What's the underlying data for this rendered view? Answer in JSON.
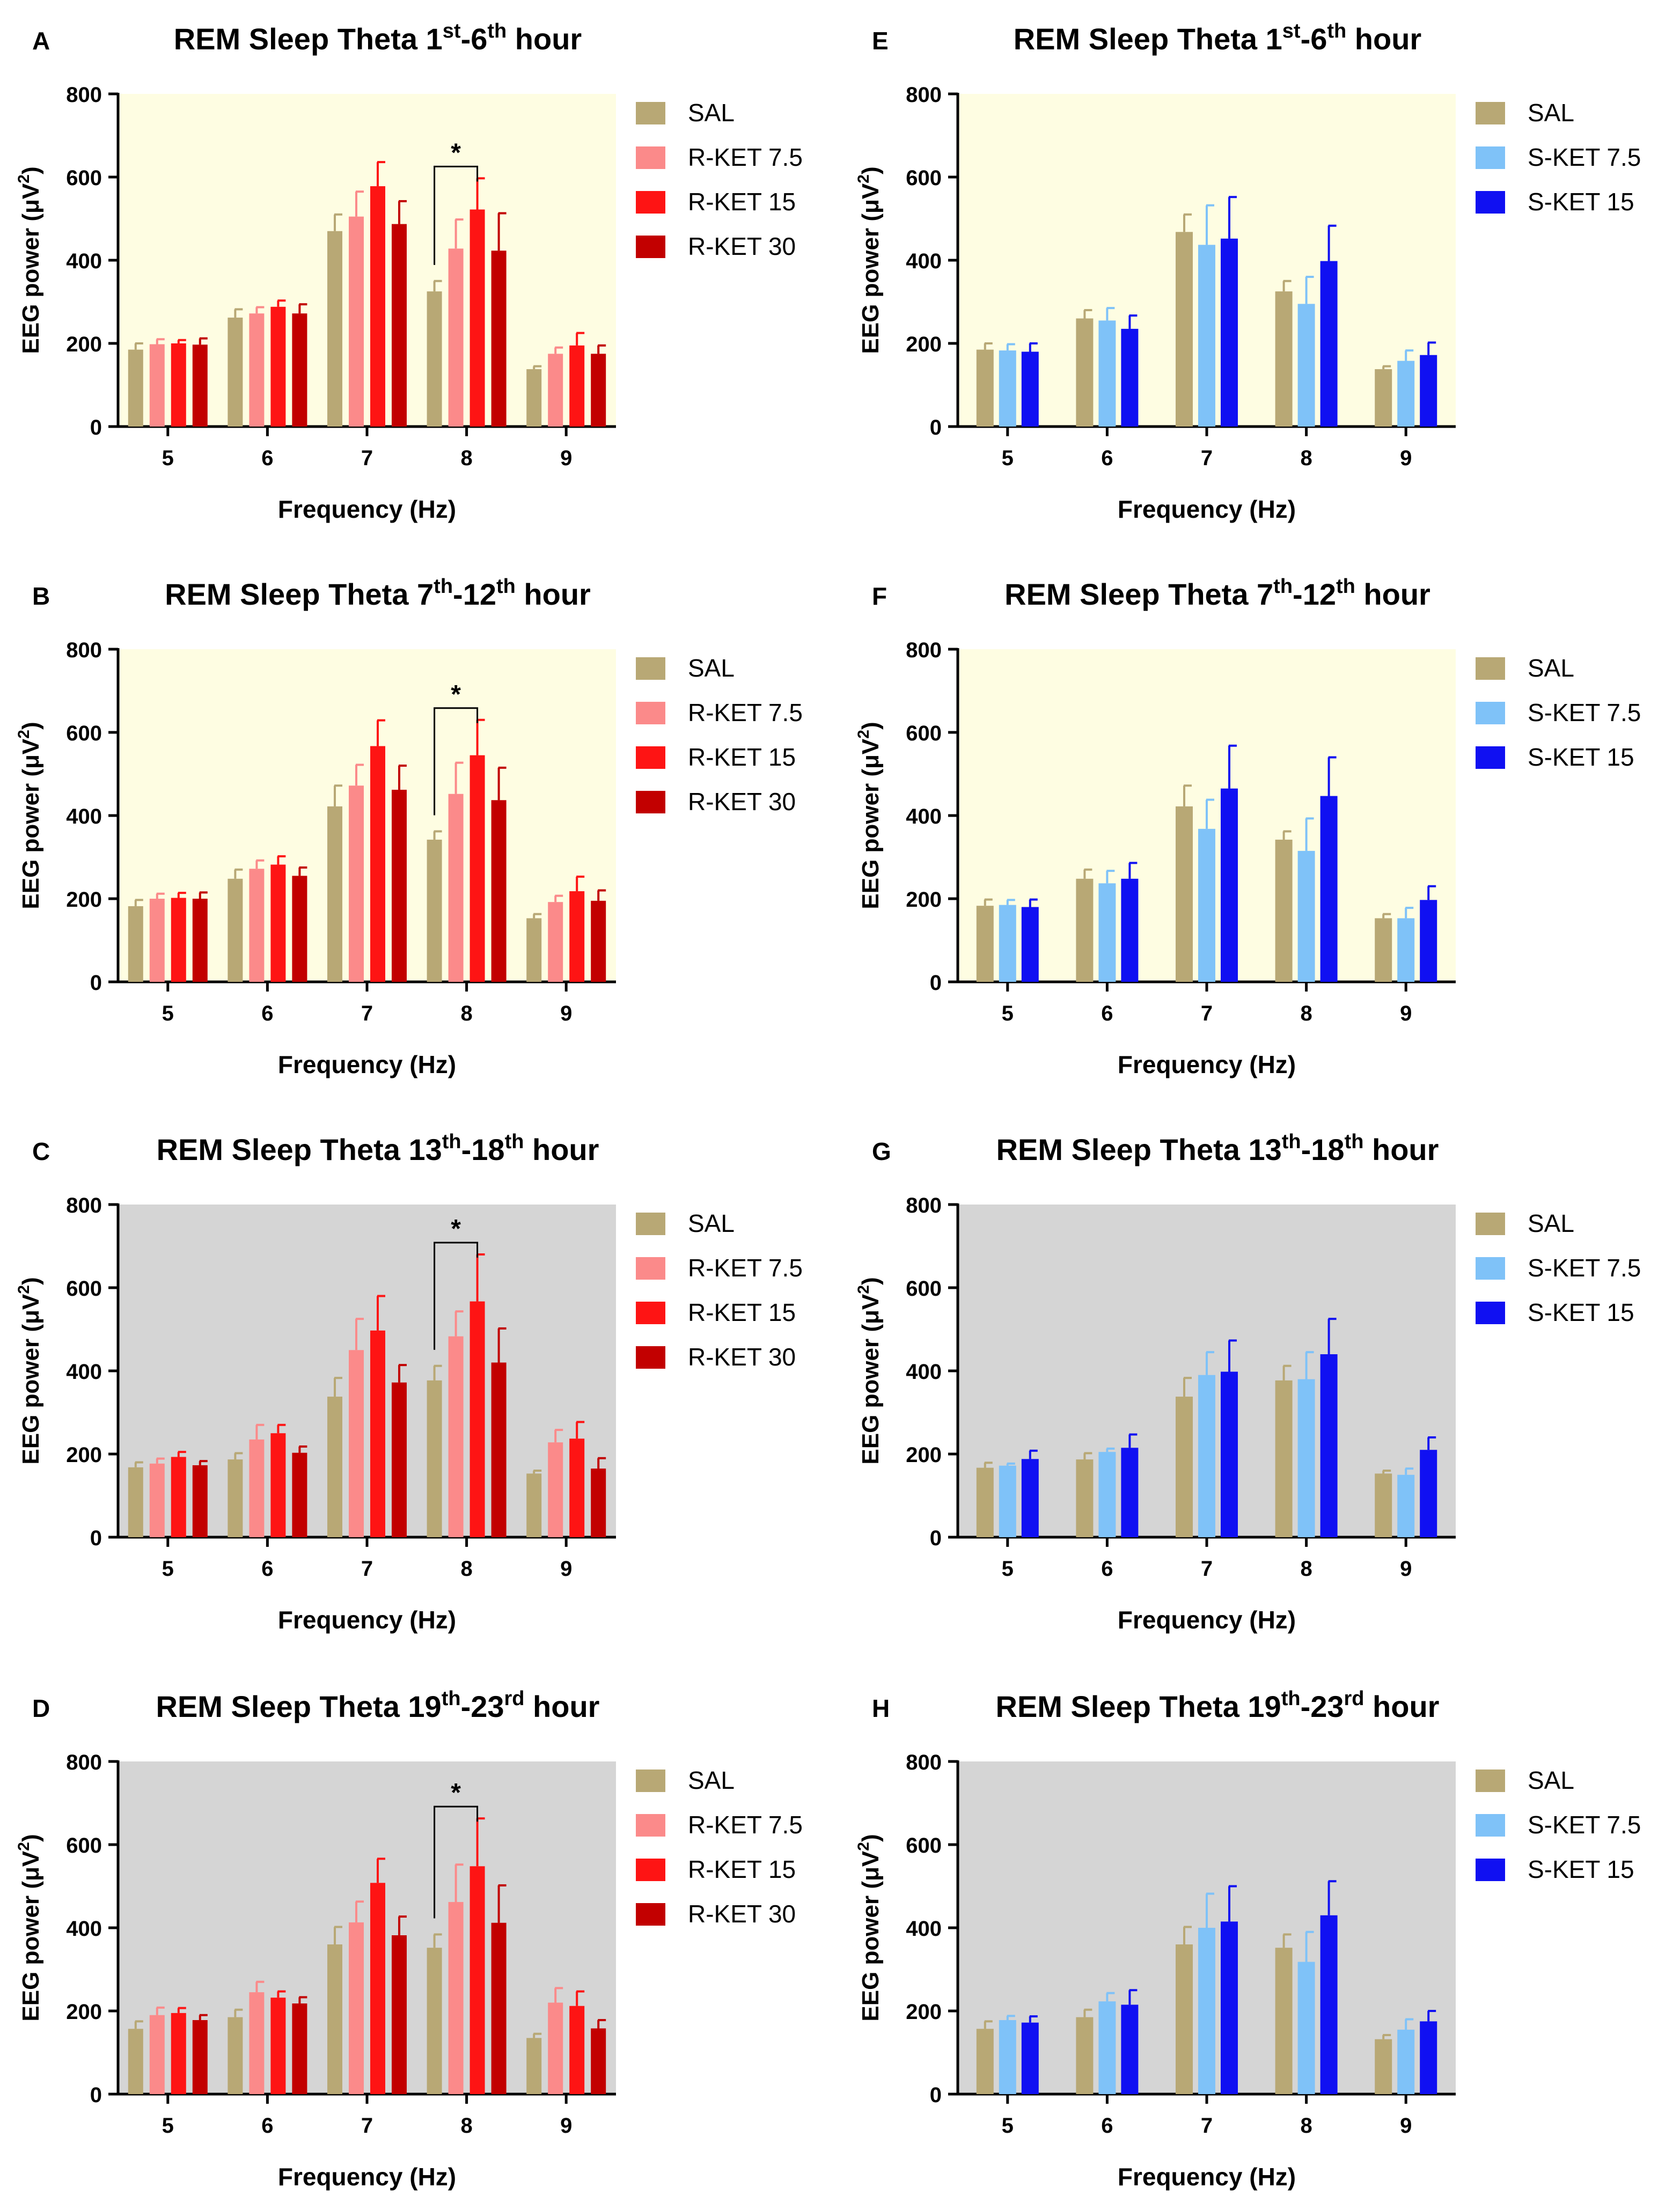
{
  "colors": {
    "SAL": "#b8a875",
    "R-KET 7.5": "#fb8a8a",
    "R-KET 15": "#fe1414",
    "R-KET 30": "#c20000",
    "S-KET 7.5": "#7fc2f8",
    "S-KET 15": "#1010f2",
    "bg_early": "#fefde2",
    "bg_late": "#d5d5d5"
  },
  "chart_data": [
    {
      "type": "bar",
      "panel": "A",
      "title": {
        "pre": "REM Sleep Theta 1",
        "sup1": "st",
        "mid": "-6",
        "sup2": "th",
        "post": " hour"
      },
      "xlabel": "Frequency (Hz)",
      "ylabel": "EEG power (μV",
      "ylabel_sup": "2",
      "ylabel_tail": ")",
      "ylim": [
        0,
        800
      ],
      "yticks": [
        "0",
        "200",
        "400",
        "600",
        "800"
      ],
      "categories": [
        "5",
        "6",
        "7",
        "8",
        "9"
      ],
      "background": "early",
      "series": [
        {
          "name": "SAL",
          "values": [
            185,
            262,
            470,
            325,
            138
          ],
          "errors": [
            15,
            20,
            40,
            25,
            7
          ]
        },
        {
          "name": "R-KET 7.5",
          "values": [
            198,
            272,
            505,
            428,
            175
          ],
          "errors": [
            12,
            15,
            60,
            70,
            15
          ]
        },
        {
          "name": "R-KET 15",
          "values": [
            200,
            288,
            578,
            522,
            195
          ],
          "errors": [
            8,
            15,
            58,
            75,
            30
          ]
        },
        {
          "name": "R-KET 30",
          "values": [
            197,
            272,
            487,
            423,
            175
          ],
          "errors": [
            15,
            22,
            55,
            90,
            20
          ]
        }
      ],
      "significance": {
        "label": "*",
        "category": "8",
        "from": "SAL",
        "to": "R-KET 15"
      }
    },
    {
      "type": "bar",
      "panel": "B",
      "title": {
        "pre": "REM Sleep Theta 7",
        "sup1": "th",
        "mid": "-12",
        "sup2": "th",
        "post": " hour"
      },
      "xlabel": "Frequency (Hz)",
      "ylabel": "EEG power (μV",
      "ylabel_sup": "2",
      "ylabel_tail": ")",
      "ylim": [
        0,
        800
      ],
      "yticks": [
        "0",
        "200",
        "400",
        "600",
        "800"
      ],
      "categories": [
        "5",
        "6",
        "7",
        "8",
        "9"
      ],
      "background": "early",
      "series": [
        {
          "name": "SAL",
          "values": [
            182,
            248,
            422,
            342,
            153
          ],
          "errors": [
            15,
            22,
            50,
            20,
            10
          ]
        },
        {
          "name": "R-KET 7.5",
          "values": [
            200,
            272,
            472,
            452,
            192
          ],
          "errors": [
            12,
            20,
            50,
            75,
            15
          ]
        },
        {
          "name": "R-KET 15",
          "values": [
            202,
            282,
            567,
            545,
            218
          ],
          "errors": [
            12,
            20,
            62,
            85,
            35
          ]
        },
        {
          "name": "R-KET 30",
          "values": [
            200,
            255,
            462,
            437,
            195
          ],
          "errors": [
            15,
            20,
            58,
            78,
            25
          ]
        }
      ],
      "significance": {
        "label": "*",
        "category": "8",
        "from": "SAL",
        "to": "R-KET 15"
      }
    },
    {
      "type": "bar",
      "panel": "C",
      "title": {
        "pre": "REM Sleep Theta 13",
        "sup1": "th",
        "mid": "-18",
        "sup2": "th",
        "post": " hour"
      },
      "xlabel": "Frequency (Hz)",
      "ylabel": "EEG power (μV",
      "ylabel_sup": "2",
      "ylabel_tail": ")",
      "ylim": [
        0,
        800
      ],
      "yticks": [
        "0",
        "200",
        "400",
        "600",
        "800"
      ],
      "categories": [
        "5",
        "6",
        "7",
        "8",
        "9"
      ],
      "background": "late",
      "series": [
        {
          "name": "SAL",
          "values": [
            168,
            187,
            338,
            377,
            153
          ],
          "errors": [
            12,
            15,
            45,
            35,
            7
          ]
        },
        {
          "name": "R-KET 7.5",
          "values": [
            177,
            235,
            450,
            483,
            228
          ],
          "errors": [
            12,
            35,
            75,
            60,
            30
          ]
        },
        {
          "name": "R-KET 15",
          "values": [
            193,
            250,
            497,
            567,
            237
          ],
          "errors": [
            12,
            20,
            83,
            113,
            40
          ]
        },
        {
          "name": "R-KET 30",
          "values": [
            173,
            203,
            372,
            420,
            165
          ],
          "errors": [
            10,
            15,
            42,
            82,
            25
          ]
        }
      ],
      "significance": {
        "label": "*",
        "category": "8",
        "from": "SAL",
        "to": "R-KET 15"
      }
    },
    {
      "type": "bar",
      "panel": "D",
      "title": {
        "pre": "REM Sleep Theta 19",
        "sup1": "th",
        "mid": "-23",
        "sup2": "rd",
        "post": " hour"
      },
      "xlabel": "Frequency (Hz)",
      "ylabel": "EEG power (μV",
      "ylabel_sup": "2",
      "ylabel_tail": ")",
      "ylim": [
        0,
        800
      ],
      "yticks": [
        "0",
        "200",
        "400",
        "600",
        "800"
      ],
      "categories": [
        "5",
        "6",
        "7",
        "8",
        "9"
      ],
      "background": "late",
      "series": [
        {
          "name": "SAL",
          "values": [
            157,
            185,
            360,
            352,
            135
          ],
          "errors": [
            18,
            18,
            42,
            32,
            10
          ]
        },
        {
          "name": "R-KET 7.5",
          "values": [
            190,
            245,
            413,
            462,
            220
          ],
          "errors": [
            18,
            25,
            50,
            90,
            35
          ]
        },
        {
          "name": "R-KET 15",
          "values": [
            195,
            232,
            508,
            548,
            212
          ],
          "errors": [
            12,
            15,
            58,
            115,
            35
          ]
        },
        {
          "name": "R-KET 30",
          "values": [
            178,
            218,
            382,
            412,
            158
          ],
          "errors": [
            12,
            15,
            45,
            90,
            20
          ]
        }
      ],
      "significance": {
        "label": "*",
        "category": "8",
        "from": "SAL",
        "to": "R-KET 15"
      }
    },
    {
      "type": "bar",
      "panel": "E",
      "title": {
        "pre": "REM Sleep Theta 1",
        "sup1": "st",
        "mid": "-6",
        "sup2": "th",
        "post": " hour"
      },
      "xlabel": "Frequency (Hz)",
      "ylabel": "EEG power (μV",
      "ylabel_sup": "2",
      "ylabel_tail": ")",
      "ylim": [
        0,
        800
      ],
      "yticks": [
        "0",
        "200",
        "400",
        "600",
        "800"
      ],
      "categories": [
        "5",
        "6",
        "7",
        "8",
        "9"
      ],
      "background": "early",
      "series": [
        {
          "name": "SAL",
          "values": [
            185,
            260,
            468,
            325,
            138
          ],
          "errors": [
            15,
            20,
            42,
            25,
            7
          ]
        },
        {
          "name": "S-KET 7.5",
          "values": [
            183,
            255,
            437,
            295,
            158
          ],
          "errors": [
            15,
            30,
            95,
            65,
            25
          ]
        },
        {
          "name": "S-KET 15",
          "values": [
            180,
            235,
            452,
            398,
            172
          ],
          "errors": [
            20,
            32,
            100,
            85,
            30
          ]
        }
      ]
    },
    {
      "type": "bar",
      "panel": "F",
      "title": {
        "pre": "REM Sleep Theta 7",
        "sup1": "th",
        "mid": "-12",
        "sup2": "th",
        "post": " hour"
      },
      "xlabel": "Frequency (Hz)",
      "ylabel": "EEG power (μV",
      "ylabel_sup": "2",
      "ylabel_tail": ")",
      "ylim": [
        0,
        800
      ],
      "yticks": [
        "0",
        "200",
        "400",
        "600",
        "800"
      ],
      "categories": [
        "5",
        "6",
        "7",
        "8",
        "9"
      ],
      "background": "early",
      "series": [
        {
          "name": "SAL",
          "values": [
            183,
            248,
            422,
            342,
            153
          ],
          "errors": [
            15,
            22,
            50,
            20,
            10
          ]
        },
        {
          "name": "S-KET 7.5",
          "values": [
            185,
            237,
            368,
            315,
            153
          ],
          "errors": [
            12,
            30,
            70,
            78,
            25
          ]
        },
        {
          "name": "S-KET 15",
          "values": [
            180,
            248,
            465,
            447,
            197
          ],
          "errors": [
            18,
            38,
            103,
            93,
            33
          ]
        }
      ]
    },
    {
      "type": "bar",
      "panel": "G",
      "title": {
        "pre": "REM Sleep Theta 13",
        "sup1": "th",
        "mid": "-18",
        "sup2": "th",
        "post": " hour"
      },
      "xlabel": "Frequency (Hz)",
      "ylabel": "EEG power (μV",
      "ylabel_sup": "2",
      "ylabel_tail": ")",
      "ylim": [
        0,
        800
      ],
      "yticks": [
        "0",
        "200",
        "400",
        "600",
        "800"
      ],
      "categories": [
        "5",
        "6",
        "7",
        "8",
        "9"
      ],
      "background": "late",
      "series": [
        {
          "name": "SAL",
          "values": [
            167,
            187,
            338,
            377,
            153
          ],
          "errors": [
            12,
            15,
            45,
            35,
            7
          ]
        },
        {
          "name": "S-KET 7.5",
          "values": [
            172,
            205,
            390,
            380,
            150
          ],
          "errors": [
            5,
            8,
            55,
            65,
            15
          ]
        },
        {
          "name": "S-KET 15",
          "values": [
            188,
            215,
            398,
            440,
            210
          ],
          "errors": [
            20,
            32,
            75,
            85,
            30
          ]
        }
      ]
    },
    {
      "type": "bar",
      "panel": "H",
      "title": {
        "pre": "REM Sleep Theta 19",
        "sup1": "th",
        "mid": "-23",
        "sup2": "rd",
        "post": " hour"
      },
      "xlabel": "Frequency (Hz)",
      "ylabel": "EEG power (μV",
      "ylabel_sup": "2",
      "ylabel_tail": ")",
      "ylim": [
        0,
        800
      ],
      "yticks": [
        "0",
        "200",
        "400",
        "600",
        "800"
      ],
      "categories": [
        "5",
        "6",
        "7",
        "8",
        "9"
      ],
      "background": "late",
      "series": [
        {
          "name": "SAL",
          "values": [
            157,
            185,
            360,
            352,
            132
          ],
          "errors": [
            18,
            18,
            42,
            32,
            10
          ]
        },
        {
          "name": "S-KET 7.5",
          "values": [
            178,
            223,
            400,
            318,
            155
          ],
          "errors": [
            10,
            20,
            82,
            72,
            25
          ]
        },
        {
          "name": "S-KET 15",
          "values": [
            172,
            215,
            415,
            430,
            175
          ],
          "errors": [
            15,
            35,
            85,
            82,
            25
          ]
        }
      ]
    }
  ]
}
